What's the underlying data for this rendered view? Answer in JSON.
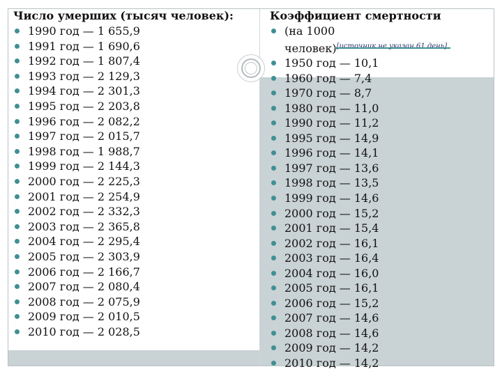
{
  "left": {
    "heading": "Число умерших (тысяч человек):",
    "items": [
      "1990 год — 1 655,9",
      "1991 год — 1 690,6",
      "1992 год — 1 807,4",
      "1993 год — 2 129,3",
      "1994 год — 2 301,3",
      "1995 год — 2 203,8",
      "1996 год — 2 082,2",
      "1997 год — 2 015,7",
      "1998 год — 1 988,7",
      "1999 год — 2 144,3",
      "2000 год — 2 225,3",
      "2001 год — 2 254,9",
      "2002 год — 2 332,3",
      "2003 год — 2 365,8",
      "2004 год — 2 295,4",
      "2005 год — 2 303,9",
      "2006 год — 2 166,7",
      "2007 год — 2 080,4",
      "2008 год — 2 075,9",
      "2009 год — 2 010,5",
      "2010 год — 2 028,5"
    ]
  },
  "right": {
    "heading": "Коэффициент смертности",
    "first_item_line1": "(на 1000",
    "first_item_note": "[источник не указан 61 день]",
    "first_item_line2": "человек)",
    "items": [
      "1950 год — 10,1",
      "1960 год — 7,4",
      "1970 год — 8,7",
      "1980 год — 11,0",
      "1990 год — 11,2",
      "1995 год — 14,9",
      "1996 год — 14,1",
      "1997 год — 13,6",
      "1998 год — 13,5",
      "1999 год — 14,6",
      "2000 год — 15,2",
      "2001 год — 15,4",
      "2002 год — 16,1",
      "2003 год — 16,4",
      "2004 год — 16,0",
      "2005 год — 16,1",
      "2006 год — 15,2",
      "2007 год — 14,6",
      "2008 год — 14,6",
      "2009 год — 14,2",
      "2010 год — 14,2"
    ]
  },
  "colors": {
    "bullet": "#3f8f94",
    "panel_gray": "#c9d2d4",
    "note_text": "#2a2f6a"
  }
}
